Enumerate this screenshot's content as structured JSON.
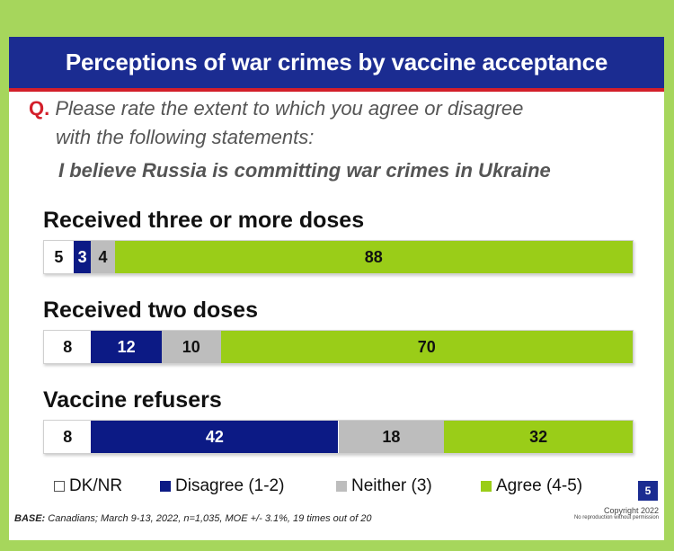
{
  "title": "Perceptions of war crimes by vaccine acceptance",
  "question_marker": "Q.",
  "question_line1": "Please rate the extent to which you agree or disagree",
  "question_line2": "with the following statements:",
  "statement": "I believe Russia is committing war crimes in Ukraine",
  "colors": {
    "dk_nr": "#ffffff",
    "disagree": "#0c1a85",
    "neither": "#bdbdbd",
    "agree": "#9acd18",
    "header": "#1b2c91",
    "accent": "#d31f2a"
  },
  "chart_data": {
    "type": "bar",
    "stacked": true,
    "orientation": "horizontal",
    "categories": [
      "Received three or more doses",
      "Received two doses",
      "Vaccine refusers"
    ],
    "series": [
      {
        "name": "DK/NR",
        "values": [
          5,
          8,
          8
        ]
      },
      {
        "name": "Disagree (1-2)",
        "values": [
          3,
          12,
          42
        ]
      },
      {
        "name": "Neither (3)",
        "values": [
          4,
          10,
          18
        ]
      },
      {
        "name": "Agree (4-5)",
        "values": [
          88,
          70,
          32
        ]
      }
    ],
    "legend_position": "bottom"
  },
  "legend": [
    "DK/NR",
    "Disagree (1-2)",
    "Neither (3)",
    "Agree (4-5)"
  ],
  "page_number": "5",
  "base_label": "BASE:",
  "base_text": " Canadians; March 9-13, 2022, n=1,035, MOE +/- 3.1%, 19 times out of 20",
  "copyright": "Copyright 2022",
  "copyright_note": "No reproduction without permission"
}
